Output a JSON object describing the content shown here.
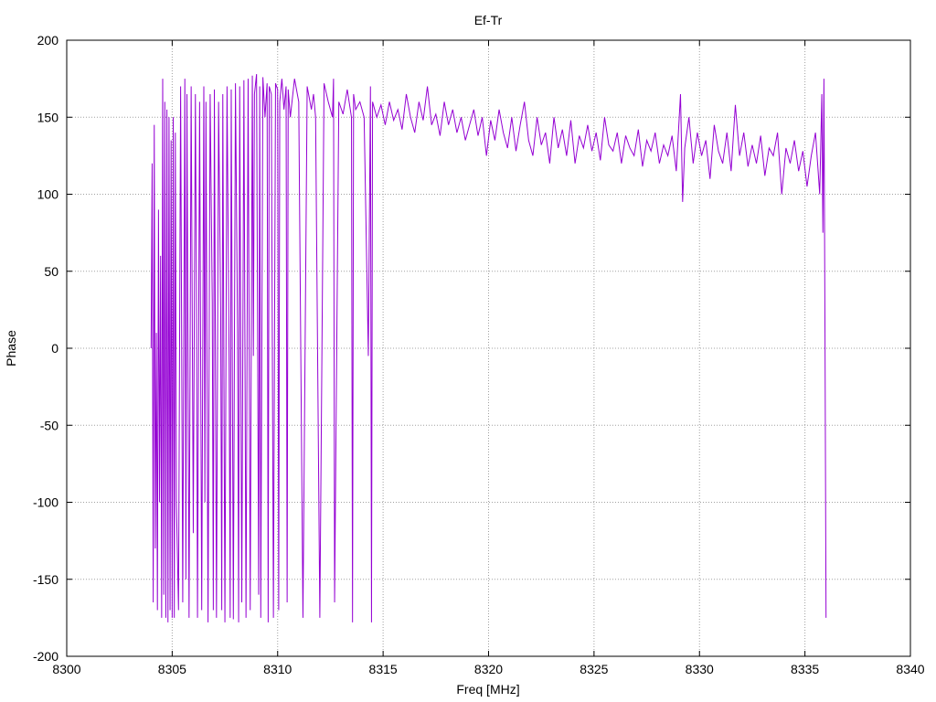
{
  "chart_data": {
    "type": "line",
    "title": "Ef-Tr",
    "xlabel": "Freq [MHz]",
    "ylabel": "Phase",
    "xlim": [
      8300,
      8340
    ],
    "ylim": [
      -200,
      200
    ],
    "xticks": [
      8300,
      8305,
      8310,
      8315,
      8320,
      8325,
      8330,
      8335,
      8340
    ],
    "yticks": [
      -200,
      -150,
      -100,
      -50,
      0,
      50,
      100,
      150,
      200
    ],
    "grid": true,
    "legend": "none",
    "line_color": "#9400d3",
    "series": [
      {
        "x": [
          8304.0,
          8304.05,
          8304.1,
          8304.15,
          8304.2,
          8304.25,
          8304.3,
          8304.35,
          8304.4,
          8304.45,
          8304.5,
          8304.55,
          8304.6,
          8304.65,
          8304.7,
          8304.75,
          8304.8,
          8304.85,
          8304.9,
          8304.95,
          8305.0,
          8305.05,
          8305.1,
          8305.15,
          8305.2,
          8305.3,
          8305.4,
          8305.5,
          8305.6,
          8305.65,
          8305.7,
          8305.8,
          8305.9,
          8306.0,
          8306.1,
          8306.15,
          8306.2,
          8306.3,
          8306.4,
          8306.5,
          8306.55,
          8306.6,
          8306.7,
          8306.8,
          8306.9,
          8306.95,
          8307.0,
          8307.1,
          8307.2,
          8307.3,
          8307.35,
          8307.4,
          8307.5,
          8307.6,
          8307.7,
          8307.75,
          8307.8,
          8307.9,
          8308.0,
          8308.1,
          8308.15,
          8308.2,
          8308.3,
          8308.4,
          8308.45,
          8308.5,
          8308.6,
          8308.7,
          8308.8,
          8308.85,
          8308.9,
          8309.0,
          8309.1,
          8309.15,
          8309.2,
          8309.3,
          8309.4,
          8309.5,
          8309.55,
          8309.6,
          8309.7,
          8309.8,
          8309.9,
          8310.0,
          8310.05,
          8310.1,
          8310.2,
          8310.3,
          8310.4,
          8310.45,
          8310.5,
          8310.6,
          8310.8,
          8311.0,
          8311.2,
          8311.4,
          8311.6,
          8311.7,
          8311.8,
          8312.0,
          8312.2,
          8312.4,
          8312.6,
          8312.65,
          8312.7,
          8312.9,
          8313.1,
          8313.3,
          8313.5,
          8313.55,
          8313.6,
          8313.7,
          8313.9,
          8314.1,
          8314.3,
          8314.4,
          8314.45,
          8314.5,
          8314.7,
          8314.9,
          8315.1,
          8315.3,
          8315.5,
          8315.7,
          8315.9,
          8316.1,
          8316.3,
          8316.5,
          8316.7,
          8316.9,
          8317.1,
          8317.3,
          8317.5,
          8317.7,
          8317.9,
          8318.1,
          8318.3,
          8318.5,
          8318.7,
          8318.9,
          8319.1,
          8319.3,
          8319.5,
          8319.7,
          8319.9,
          8320.1,
          8320.3,
          8320.5,
          8320.7,
          8320.9,
          8321.1,
          8321.3,
          8321.5,
          8321.7,
          8321.9,
          8322.1,
          8322.3,
          8322.5,
          8322.7,
          8322.9,
          8323.1,
          8323.3,
          8323.5,
          8323.7,
          8323.9,
          8324.1,
          8324.3,
          8324.5,
          8324.7,
          8324.9,
          8325.1,
          8325.3,
          8325.5,
          8325.7,
          8325.9,
          8326.1,
          8326.3,
          8326.5,
          8326.7,
          8326.9,
          8327.1,
          8327.3,
          8327.5,
          8327.7,
          8327.9,
          8328.1,
          8328.3,
          8328.5,
          8328.7,
          8328.9,
          8329.1,
          8329.2,
          8329.3,
          8329.5,
          8329.7,
          8329.9,
          8330.1,
          8330.3,
          8330.5,
          8330.7,
          8330.9,
          8331.1,
          8331.3,
          8331.5,
          8331.7,
          8331.9,
          8332.1,
          8332.3,
          8332.5,
          8332.7,
          8332.9,
          8333.1,
          8333.3,
          8333.5,
          8333.7,
          8333.9,
          8334.1,
          8334.3,
          8334.5,
          8334.7,
          8334.9,
          8335.1,
          8335.3,
          8335.5,
          8335.7,
          8335.8,
          8335.85,
          8335.9,
          8335.95,
          8336.0
        ],
        "y": [
          0,
          120,
          -165,
          145,
          -130,
          10,
          -170,
          90,
          -100,
          60,
          -175,
          175,
          -160,
          160,
          -175,
          155,
          -178,
          150,
          -170,
          135,
          -175,
          150,
          -175,
          140,
          -100,
          -170,
          170,
          -165,
          175,
          -150,
          165,
          -175,
          170,
          -120,
          165,
          40,
          -175,
          160,
          -170,
          170,
          -100,
          160,
          -178,
          165,
          30,
          -170,
          168,
          -175,
          160,
          20,
          -170,
          165,
          -178,
          170,
          -10,
          -175,
          168,
          -176,
          172,
          10,
          -178,
          170,
          -165,
          174,
          0,
          -175,
          175,
          -170,
          177,
          -5,
          165,
          178,
          -160,
          170,
          -175,
          176,
          150,
          172,
          -178,
          170,
          165,
          -175,
          172,
          168,
          -170,
          160,
          175,
          155,
          170,
          -165,
          168,
          150,
          175,
          160,
          -175,
          170,
          155,
          165,
          150,
          -175,
          172,
          160,
          150,
          175,
          -165,
          160,
          152,
          168,
          150,
          -178,
          165,
          155,
          160,
          150,
          -5,
          170,
          -178,
          160,
          150,
          158,
          145,
          160,
          148,
          155,
          142,
          165,
          150,
          140,
          160,
          148,
          170,
          145,
          152,
          138,
          160,
          145,
          155,
          140,
          150,
          135,
          145,
          155,
          138,
          150,
          125,
          148,
          135,
          155,
          140,
          130,
          150,
          128,
          145,
          160,
          135,
          125,
          150,
          132,
          140,
          120,
          150,
          130,
          142,
          125,
          148,
          120,
          138,
          130,
          145,
          128,
          140,
          122,
          150,
          132,
          128,
          140,
          120,
          138,
          130,
          125,
          142,
          118,
          135,
          128,
          140,
          120,
          132,
          125,
          138,
          115,
          165,
          95,
          130,
          150,
          120,
          140,
          125,
          135,
          110,
          145,
          128,
          120,
          140,
          115,
          158,
          125,
          140,
          118,
          132,
          120,
          138,
          112,
          130,
          125,
          140,
          100,
          130,
          120,
          135,
          115,
          128,
          105,
          125,
          140,
          100,
          165,
          75,
          175,
          10,
          -175
        ]
      }
    ]
  }
}
